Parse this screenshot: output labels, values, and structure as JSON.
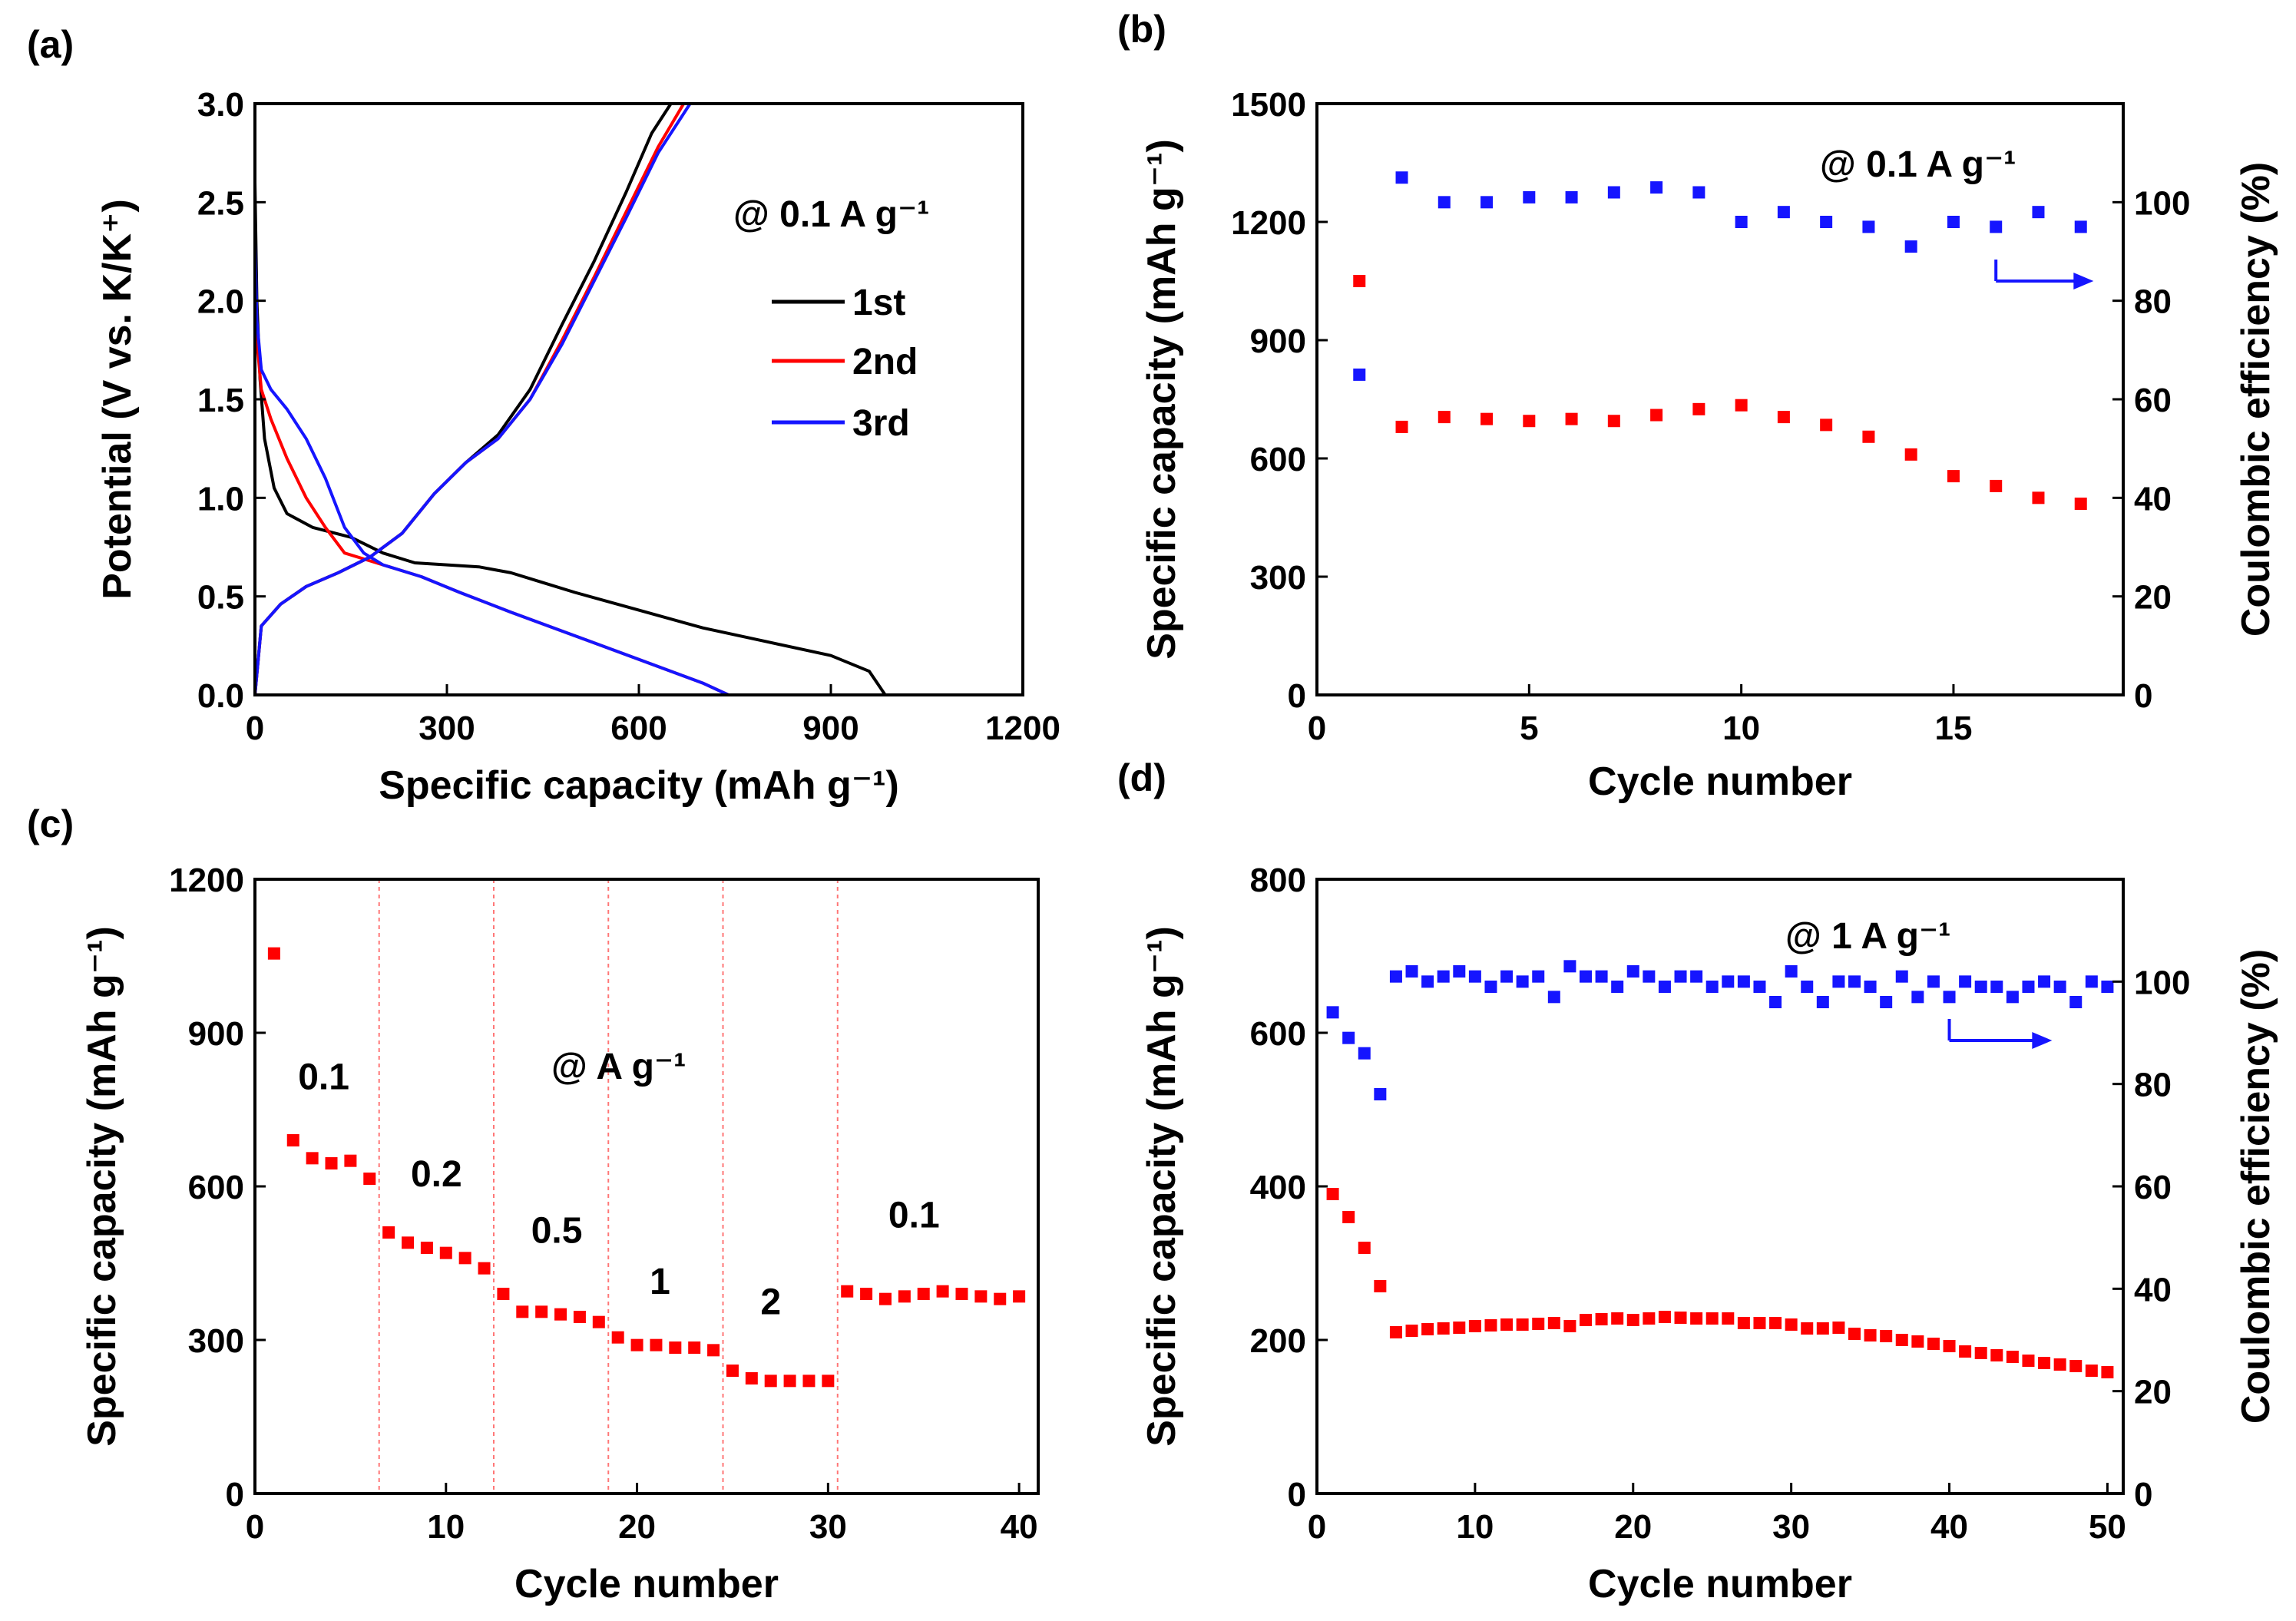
{
  "colors": {
    "black": "#000000",
    "red": "#ff0000",
    "blue": "#1515ff",
    "dash": "#ff7777"
  },
  "chart_data": [
    {
      "id": "a",
      "panel_label": "(a)",
      "type": "line",
      "xlabel": "Specific capacity (mAh g⁻¹)",
      "ylabel": "Potential (V vs. K/K⁺)",
      "xlim": [
        0,
        1200
      ],
      "ylim": [
        0,
        3.0
      ],
      "xticks": [
        0,
        300,
        600,
        900,
        1200
      ],
      "yticks": [
        0.0,
        0.5,
        1.0,
        1.5,
        2.0,
        2.5,
        3.0
      ],
      "xtick_labels": [
        "0",
        "300",
        "600",
        "900",
        "1200"
      ],
      "ytick_labels": [
        "0.0",
        "0.5",
        "1.0",
        "1.5",
        "2.0",
        "2.5",
        "3.0"
      ],
      "annotation": "@ 0.1 A g⁻¹",
      "legend": [
        "1st",
        "2nd",
        "3rd"
      ],
      "series": [
        {
          "name": "1st",
          "color": "#000000",
          "discharge": {
            "x": [
              0,
              3,
              8,
              15,
              30,
              50,
              90,
              150,
              200,
              250,
              300,
              350,
              400,
              450,
              500,
              600,
              700,
              800,
              900,
              960,
              985
            ],
            "y": [
              2.6,
              2.0,
              1.6,
              1.3,
              1.05,
              0.92,
              0.85,
              0.8,
              0.72,
              0.67,
              0.66,
              0.65,
              0.62,
              0.57,
              0.52,
              0.43,
              0.34,
              0.27,
              0.2,
              0.12,
              0.0
            ]
          },
          "charge": {
            "x": [
              0,
              10,
              40,
              80,
              130,
              180,
              230,
              280,
              330,
              380,
              430,
              480,
              530,
              580,
              620,
              650
            ],
            "y": [
              0.0,
              0.35,
              0.46,
              0.55,
              0.62,
              0.7,
              0.82,
              1.02,
              1.18,
              1.32,
              1.55,
              1.88,
              2.2,
              2.55,
              2.85,
              3.0
            ]
          }
        },
        {
          "name": "2nd",
          "color": "#ff0000",
          "discharge": {
            "x": [
              0,
              3,
              10,
              25,
              50,
              80,
              110,
              140,
              170,
              200,
              260,
              320,
              400,
              500,
              600,
              700,
              740
            ],
            "y": [
              2.2,
              1.8,
              1.55,
              1.4,
              1.2,
              1.0,
              0.85,
              0.72,
              0.69,
              0.66,
              0.6,
              0.52,
              0.42,
              0.3,
              0.18,
              0.06,
              0.0
            ]
          },
          "charge": {
            "x": [
              0,
              10,
              40,
              80,
              130,
              180,
              230,
              280,
              330,
              380,
              430,
              480,
              530,
              580,
              630,
              670
            ],
            "y": [
              0.0,
              0.35,
              0.46,
              0.55,
              0.62,
              0.7,
              0.82,
              1.02,
              1.18,
              1.3,
              1.5,
              1.8,
              2.12,
              2.45,
              2.78,
              3.0
            ]
          }
        },
        {
          "name": "3rd",
          "color": "#1515ff",
          "discharge": {
            "x": [
              0,
              3,
              10,
              25,
              50,
              80,
              110,
              140,
              170,
              200,
              260,
              320,
              400,
              500,
              600,
              700,
              740
            ],
            "y": [
              2.3,
              1.9,
              1.65,
              1.55,
              1.45,
              1.3,
              1.1,
              0.85,
              0.72,
              0.66,
              0.6,
              0.52,
              0.42,
              0.3,
              0.18,
              0.06,
              0.0
            ]
          },
          "charge": {
            "x": [
              0,
              10,
              40,
              80,
              130,
              180,
              230,
              280,
              330,
              380,
              430,
              480,
              530,
              580,
              630,
              680
            ],
            "y": [
              0.0,
              0.35,
              0.46,
              0.55,
              0.62,
              0.7,
              0.82,
              1.02,
              1.18,
              1.3,
              1.5,
              1.78,
              2.1,
              2.42,
              2.75,
              3.0
            ]
          }
        }
      ]
    },
    {
      "id": "b",
      "panel_label": "(b)",
      "type": "scatter",
      "xlabel": "Cycle number",
      "ylabel": "Specific capacity (mAh g⁻¹)",
      "ylabel_right": "Coulombic efficiency (%)",
      "xlim": [
        0,
        19
      ],
      "ylim": [
        0,
        1500
      ],
      "ylim_right": [
        0,
        120
      ],
      "xticks": [
        0,
        5,
        10,
        15
      ],
      "yticks": [
        0,
        300,
        600,
        900,
        1200,
        1500
      ],
      "yticks_right": [
        0,
        20,
        40,
        60,
        80,
        100
      ],
      "xtick_labels": [
        "0",
        "5",
        "10",
        "15"
      ],
      "ytick_labels": [
        "0",
        "300",
        "600",
        "900",
        "1200",
        "1500"
      ],
      "ytick_labels_right": [
        "0",
        "20",
        "40",
        "60",
        "80",
        "100"
      ],
      "annotation": "@ 0.1 A g⁻¹",
      "arrow": {
        "from": [
          16,
          84
        ],
        "to": [
          18.3,
          84
        ]
      },
      "series": [
        {
          "name": "Specific capacity",
          "axis": "left",
          "color": "#ff0000",
          "x": [
            1,
            2,
            3,
            4,
            5,
            6,
            7,
            8,
            9,
            10,
            11,
            12,
            13,
            14,
            15,
            16,
            17,
            18
          ],
          "y": [
            1050,
            680,
            705,
            700,
            695,
            700,
            695,
            710,
            725,
            735,
            705,
            685,
            655,
            610,
            555,
            530,
            500,
            485
          ]
        },
        {
          "name": "Coulombic efficiency",
          "axis": "right",
          "color": "#1515ff",
          "x": [
            1,
            2,
            3,
            4,
            5,
            6,
            7,
            8,
            9,
            10,
            11,
            12,
            13,
            14,
            15,
            16,
            17,
            18
          ],
          "y": [
            65,
            105,
            100,
            100,
            101,
            101,
            102,
            103,
            102,
            96,
            98,
            96,
            95,
            91,
            96,
            95,
            98,
            95
          ]
        }
      ]
    },
    {
      "id": "c",
      "panel_label": "(c)",
      "type": "scatter",
      "xlabel": "Cycle number",
      "ylabel": "Specific capacity (mAh g⁻¹)",
      "xlim": [
        0,
        41
      ],
      "ylim": [
        0,
        1200
      ],
      "xticks": [
        0,
        10,
        20,
        30,
        40
      ],
      "yticks": [
        0,
        300,
        600,
        900,
        1200
      ],
      "xtick_labels": [
        "0",
        "10",
        "20",
        "30",
        "40"
      ],
      "ytick_labels": [
        "0",
        "300",
        "600",
        "900",
        "1200"
      ],
      "annotation": "@ A g⁻¹",
      "dividers": [
        6.5,
        12.5,
        18.5,
        24.5,
        30.5
      ],
      "rate_labels": [
        {
          "text": "0.1",
          "x": 3.6,
          "y": 790
        },
        {
          "text": "0.2",
          "x": 9.5,
          "y": 600
        },
        {
          "text": "0.5",
          "x": 15.8,
          "y": 490
        },
        {
          "text": "1",
          "x": 21.2,
          "y": 390
        },
        {
          "text": "2",
          "x": 27.0,
          "y": 350
        },
        {
          "text": "0.1",
          "x": 34.5,
          "y": 520
        }
      ],
      "series": [
        {
          "name": "Specific capacity",
          "color": "#ff0000",
          "x": [
            1,
            2,
            3,
            4,
            5,
            6,
            7,
            8,
            9,
            10,
            11,
            12,
            13,
            14,
            15,
            16,
            17,
            18,
            19,
            20,
            21,
            22,
            23,
            24,
            25,
            26,
            27,
            28,
            29,
            30,
            31,
            32,
            33,
            34,
            35,
            36,
            37,
            38,
            39,
            40
          ],
          "y": [
            1055,
            690,
            655,
            645,
            650,
            615,
            510,
            490,
            480,
            470,
            460,
            440,
            390,
            355,
            355,
            350,
            345,
            335,
            305,
            290,
            290,
            285,
            285,
            280,
            240,
            225,
            220,
            220,
            220,
            220,
            395,
            390,
            380,
            385,
            390,
            395,
            390,
            385,
            380,
            385
          ]
        }
      ]
    },
    {
      "id": "d",
      "panel_label": "(d)",
      "type": "scatter",
      "xlabel": "Cycle number",
      "ylabel": "Specific capacity (mAh g⁻¹)",
      "ylabel_right": "Coulombic efficiency (%)",
      "xlim": [
        0,
        51
      ],
      "ylim": [
        0,
        800
      ],
      "ylim_right": [
        0,
        120
      ],
      "xticks": [
        0,
        10,
        20,
        30,
        40,
        50
      ],
      "yticks": [
        0,
        200,
        400,
        600,
        800
      ],
      "yticks_right": [
        0,
        20,
        40,
        60,
        80,
        100
      ],
      "xtick_labels": [
        "0",
        "10",
        "20",
        "30",
        "40",
        "50"
      ],
      "ytick_labels": [
        "0",
        "200",
        "400",
        "600",
        "800"
      ],
      "ytick_labels_right": [
        "0",
        "20",
        "40",
        "60",
        "80",
        "100"
      ],
      "annotation": "@ 1 A g⁻¹",
      "arrow": {
        "from": [
          40,
          88.5
        ],
        "to": [
          46.5,
          88.5
        ]
      },
      "series": [
        {
          "name": "Specific capacity",
          "axis": "left",
          "color": "#ff0000",
          "x": [
            1,
            2,
            3,
            4,
            5,
            6,
            7,
            8,
            9,
            10,
            11,
            12,
            13,
            14,
            15,
            16,
            17,
            18,
            19,
            20,
            21,
            22,
            23,
            24,
            25,
            26,
            27,
            28,
            29,
            30,
            31,
            32,
            33,
            34,
            35,
            36,
            37,
            38,
            39,
            40,
            41,
            42,
            43,
            44,
            45,
            46,
            47,
            48,
            49,
            50
          ],
          "y": [
            390,
            360,
            320,
            270,
            210,
            212,
            214,
            215,
            216,
            218,
            219,
            220,
            220,
            221,
            222,
            218,
            226,
            227,
            228,
            226,
            228,
            230,
            229,
            228,
            228,
            228,
            222,
            222,
            222,
            220,
            215,
            215,
            216,
            208,
            206,
            205,
            200,
            198,
            195,
            192,
            185,
            183,
            180,
            178,
            173,
            170,
            168,
            166,
            160,
            158
          ]
        },
        {
          "name": "Coulombic efficiency",
          "axis": "right",
          "color": "#1515ff",
          "x": [
            1,
            2,
            3,
            4,
            5,
            6,
            7,
            8,
            9,
            10,
            11,
            12,
            13,
            14,
            15,
            16,
            17,
            18,
            19,
            20,
            21,
            22,
            23,
            24,
            25,
            26,
            27,
            28,
            29,
            30,
            31,
            32,
            33,
            34,
            35,
            36,
            37,
            38,
            39,
            40,
            41,
            42,
            43,
            44,
            45,
            46,
            47,
            48,
            49,
            50
          ],
          "y": [
            94,
            89,
            86,
            78,
            101,
            102,
            100,
            101,
            102,
            101,
            99,
            101,
            100,
            101,
            97,
            103,
            101,
            101,
            99,
            102,
            101,
            99,
            101,
            101,
            99,
            100,
            100,
            99,
            96,
            102,
            99,
            96,
            100,
            100,
            99,
            96,
            101,
            97,
            100,
            97,
            100,
            99,
            99,
            97,
            99,
            100,
            99,
            96,
            100,
            99
          ]
        }
      ]
    }
  ]
}
